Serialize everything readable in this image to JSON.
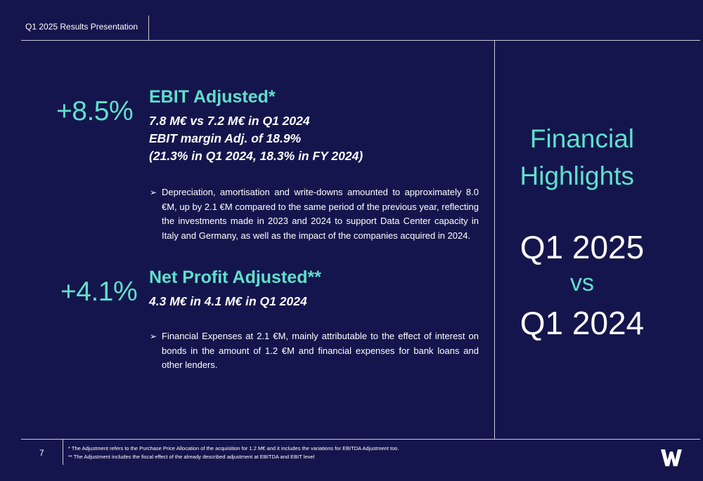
{
  "header": {
    "title": "Q1 2025 Results Presentation"
  },
  "ebit": {
    "change": "+8.5%",
    "title": "EBIT Adjusted*",
    "line1": "7.8 M€ vs 7.2 M€ in Q1 2024",
    "line2": "EBIT margin Adj. of 18.9%",
    "line3": "(21.3% in Q1 2024, 18.3% in FY 2024)",
    "bullet_arrow": "➢",
    "bullet": "Depreciation, amortisation and write-downs amounted to approximately 8.0 €M, up by 2.1 €M compared to the same period of the previous year, reflecting the investments made in 2023 and 2024 to support Data Center capacity in Italy and Germany, as well as the impact of the companies acquired in 2024."
  },
  "net_profit": {
    "change": "+4.1%",
    "title": "Net Profit Adjusted**",
    "line1": "4.3 M€ in 4.1 M€ in Q1 2024",
    "bullet_arrow": "➢",
    "bullet": "Financial Expenses at 2.1 €M, mainly attributable to the effect of interest on bonds in the amount of 1.2 €M and financial expenses for bank loans and other lenders."
  },
  "side": {
    "title_line1": "Financial",
    "title_line2": "Highlights",
    "period1": "Q1 2025",
    "vs": "vs",
    "period2": "Q1 2024"
  },
  "footer": {
    "page_number": "7",
    "note1": "* The Adjustment refers to the Purchase Price Allocation of the acquisition for 1.2 M€ and it includes the variations for EBITDA Adjustment too.",
    "note2": "** The Adjustment includes the fiscal effect of the already described adjustment at EBITDA and EBIT level",
    "logo": "W"
  },
  "colors": {
    "background": "#15154d",
    "accent": "#5fe0cb",
    "text": "#ffffff",
    "rule": "#c8c8d8"
  }
}
